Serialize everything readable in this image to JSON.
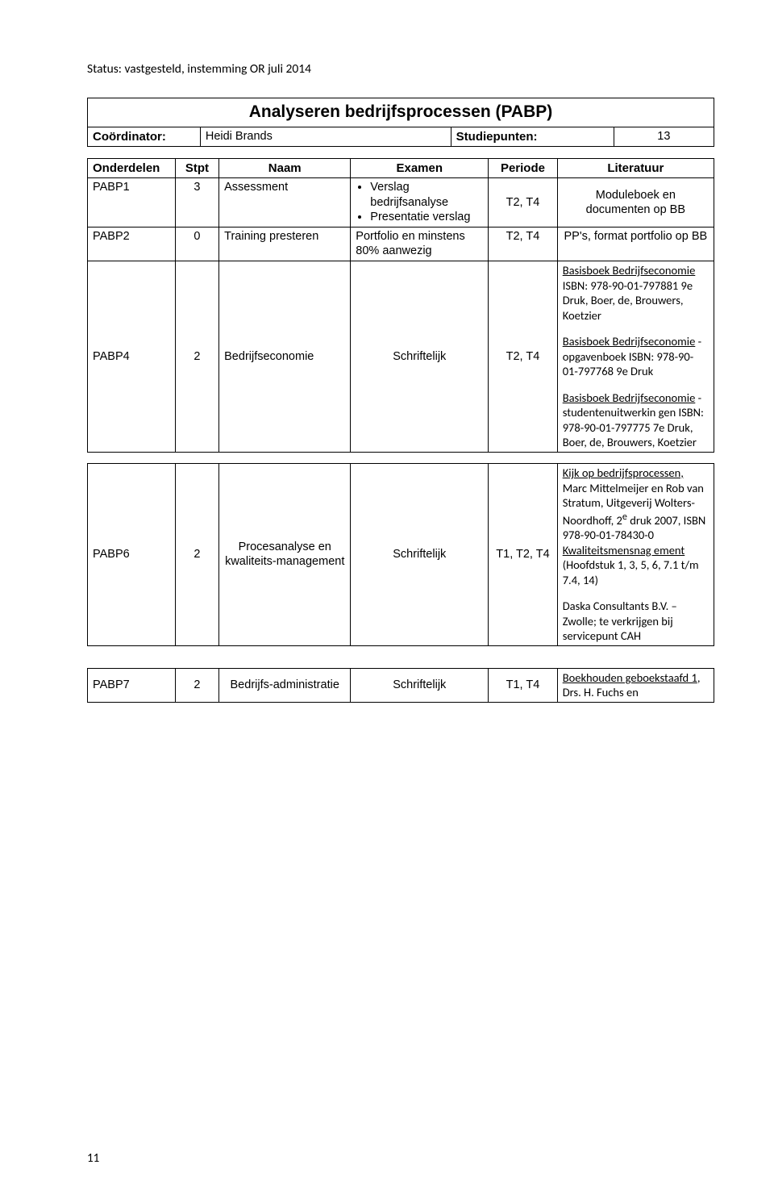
{
  "header_status": "Status: vastgesteld, instemming OR juli 2014",
  "page_num": "11",
  "module": {
    "title": "Analyseren bedrijfsprocessen (PABP)",
    "coord_label": "Coördinator:",
    "coord_value": "Heidi Brands",
    "sp_label": "Studiepunten:",
    "sp_value": "13"
  },
  "cols": {
    "c1": "Onderdelen",
    "c2": "Stpt",
    "c3": "Naam",
    "c4": "Examen",
    "c5": "Periode",
    "c6": "Literatuur"
  },
  "r1": {
    "code": "PABP1",
    "stpt": "3",
    "naam": "Assessment",
    "ex1": "Verslag bedrijfsanalyse",
    "ex2": "Presentatie verslag",
    "periode": "T2, T4",
    "lit": "Moduleboek en documenten op BB"
  },
  "r2": {
    "code": "PABP2",
    "stpt": "0",
    "naam": "Training presteren",
    "examen": "Portfolio en minstens 80% aanwezig",
    "periode": "T2, T4",
    "lit": "PP's, format portfolio op BB"
  },
  "r3": {
    "code": "PABP4",
    "stpt": "2",
    "naam": "Bedrijfseconomie",
    "examen": "Schriftelijk",
    "periode": "T2, T4",
    "lit_a1": "Basisboek Bedrijfseconomie",
    "lit_a2": "ISBN: 978-90-01-797881 9e Druk, Boer, de, Brouwers, Koetzier",
    "lit_b1": "Basisboek Bedrijfseconomie",
    "lit_b2": " - opgavenboek ISBN: 978-90-01-797768 9e Druk",
    "lit_c1": "Basisboek Bedrijfseconomie",
    "lit_c2": " - studentenuitwerkin gen ISBN: 978-90-01-797775 7e Druk, Boer, de, Brouwers, Koetzier"
  },
  "r4": {
    "code": "PABP6",
    "stpt": "2",
    "naam": "Procesanalyse en kwaliteits-management",
    "examen": "Schriftelijk",
    "periode": "T1, T2, T4",
    "lit_a1": "Kijk op bedrijfsprocessen,",
    "lit_a2": " Marc Mittelmeijer en Rob van Stratum, Uitgeverij Wolters-Noordhoff, 2",
    "lit_ae": "e",
    "lit_a3": " druk 2007, ISBN 978-90-01-78430-0",
    "lit_b1": "Kwaliteitsmensnag ement ",
    "lit_b2": "(Hoofdstuk 1, 3, 5, 6, 7.1 t/m 7.4, 14)",
    "lit_c": "Daska Consultants B.V. – Zwolle; te verkrijgen bij servicepunt CAH"
  },
  "r5": {
    "code": "PABP7",
    "stpt": "2",
    "naam": "Bedrijfs-administratie",
    "examen": "Schriftelijk",
    "periode": "T1, T4",
    "lit_a1": "Boekhouden geboekstaafd 1",
    "lit_a2": ", Drs. H. Fuchs en"
  },
  "widths": {
    "c1": "14%",
    "c2": "7%",
    "c3": "21%",
    "c4": "22%",
    "c5": "11%",
    "c6": "25%"
  }
}
